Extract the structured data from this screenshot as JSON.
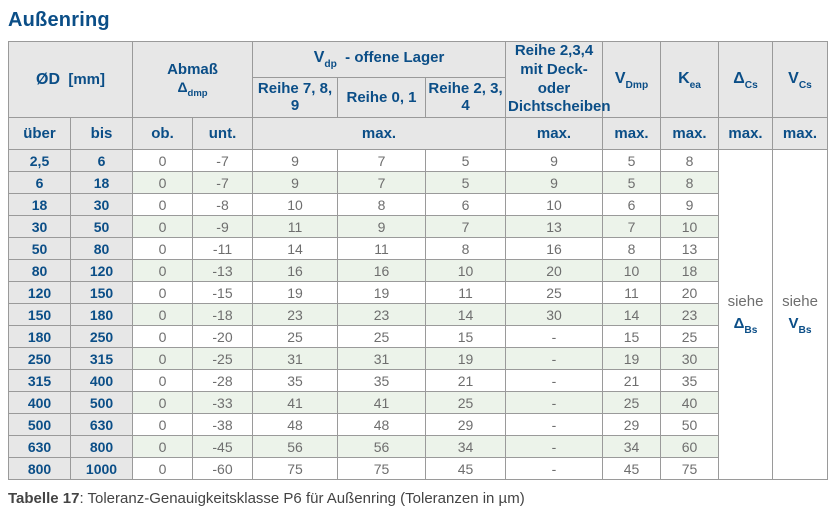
{
  "page": {
    "title": "Außenring",
    "caption_label": "Tabelle 17",
    "caption_text": ": Toleranz-Genauigkeitsklasse P6 für Außenring (Toleranzen in µm)"
  },
  "colors": {
    "accent": "#0b4e87",
    "header_bg": "#e7e7e7",
    "stripe_green": "#ecf3ea",
    "border": "#9a9a9a",
    "value_text": "#6e6e6e",
    "caption_text": "#444444"
  },
  "table": {
    "header": {
      "od": {
        "sym": "ØD",
        "unit": "[mm]"
      },
      "abmass": {
        "line1": "Abmaß",
        "sym": "Δ",
        "sub": "dmp"
      },
      "vdp_group": {
        "sym": "V",
        "sub": "dp",
        "rest": "-  offene Lager"
      },
      "reihe_cols": [
        "Reihe 7, 8, 9",
        "Reihe 0, 1",
        "Reihe 2, 3, 4"
      ],
      "deck": {
        "line1": "Reihe 2,3,4",
        "line2": "mit Deck- oder",
        "line3": "Dichtscheiben"
      },
      "vdmp": {
        "sym": "V",
        "sub": "Dmp"
      },
      "kea": {
        "sym": "K",
        "sub": "ea"
      },
      "dcs": {
        "sym": "Δ",
        "sub": "Cs"
      },
      "vcs": {
        "sym": "V",
        "sub": "Cs"
      },
      "sub_row": {
        "ueber": "über",
        "bis": "bis",
        "ob": "ob.",
        "unt": "unt.",
        "max": "max."
      }
    },
    "see_delta": {
      "prefix": "siehe",
      "sym": "Δ",
      "sub": "Bs"
    },
    "see_v": {
      "prefix": "siehe",
      "sym": "V",
      "sub": "Bs"
    },
    "rows": [
      {
        "ueber": "2,5",
        "bis": "6",
        "ob": "0",
        "unt": "-7",
        "r789": "9",
        "r01": "7",
        "r234": "5",
        "deck": "9",
        "vdmp": "5",
        "kea": "8"
      },
      {
        "ueber": "6",
        "bis": "18",
        "ob": "0",
        "unt": "-7",
        "r789": "9",
        "r01": "7",
        "r234": "5",
        "deck": "9",
        "vdmp": "5",
        "kea": "8"
      },
      {
        "ueber": "18",
        "bis": "30",
        "ob": "0",
        "unt": "-8",
        "r789": "10",
        "r01": "8",
        "r234": "6",
        "deck": "10",
        "vdmp": "6",
        "kea": "9"
      },
      {
        "ueber": "30",
        "bis": "50",
        "ob": "0",
        "unt": "-9",
        "r789": "11",
        "r01": "9",
        "r234": "7",
        "deck": "13",
        "vdmp": "7",
        "kea": "10"
      },
      {
        "ueber": "50",
        "bis": "80",
        "ob": "0",
        "unt": "-11",
        "r789": "14",
        "r01": "11",
        "r234": "8",
        "deck": "16",
        "vdmp": "8",
        "kea": "13"
      },
      {
        "ueber": "80",
        "bis": "120",
        "ob": "0",
        "unt": "-13",
        "r789": "16",
        "r01": "16",
        "r234": "10",
        "deck": "20",
        "vdmp": "10",
        "kea": "18"
      },
      {
        "ueber": "120",
        "bis": "150",
        "ob": "0",
        "unt": "-15",
        "r789": "19",
        "r01": "19",
        "r234": "11",
        "deck": "25",
        "vdmp": "11",
        "kea": "20"
      },
      {
        "ueber": "150",
        "bis": "180",
        "ob": "0",
        "unt": "-18",
        "r789": "23",
        "r01": "23",
        "r234": "14",
        "deck": "30",
        "vdmp": "14",
        "kea": "23"
      },
      {
        "ueber": "180",
        "bis": "250",
        "ob": "0",
        "unt": "-20",
        "r789": "25",
        "r01": "25",
        "r234": "15",
        "deck": "-",
        "vdmp": "15",
        "kea": "25"
      },
      {
        "ueber": "250",
        "bis": "315",
        "ob": "0",
        "unt": "-25",
        "r789": "31",
        "r01": "31",
        "r234": "19",
        "deck": "-",
        "vdmp": "19",
        "kea": "30"
      },
      {
        "ueber": "315",
        "bis": "400",
        "ob": "0",
        "unt": "-28",
        "r789": "35",
        "r01": "35",
        "r234": "21",
        "deck": "-",
        "vdmp": "21",
        "kea": "35"
      },
      {
        "ueber": "400",
        "bis": "500",
        "ob": "0",
        "unt": "-33",
        "r789": "41",
        "r01": "41",
        "r234": "25",
        "deck": "-",
        "vdmp": "25",
        "kea": "40"
      },
      {
        "ueber": "500",
        "bis": "630",
        "ob": "0",
        "unt": "-38",
        "r789": "48",
        "r01": "48",
        "r234": "29",
        "deck": "-",
        "vdmp": "29",
        "kea": "50"
      },
      {
        "ueber": "630",
        "bis": "800",
        "ob": "0",
        "unt": "-45",
        "r789": "56",
        "r01": "56",
        "r234": "34",
        "deck": "-",
        "vdmp": "34",
        "kea": "60"
      },
      {
        "ueber": "800",
        "bis": "1000",
        "ob": "0",
        "unt": "-60",
        "r789": "75",
        "r01": "75",
        "r234": "45",
        "deck": "-",
        "vdmp": "45",
        "kea": "75"
      }
    ]
  }
}
